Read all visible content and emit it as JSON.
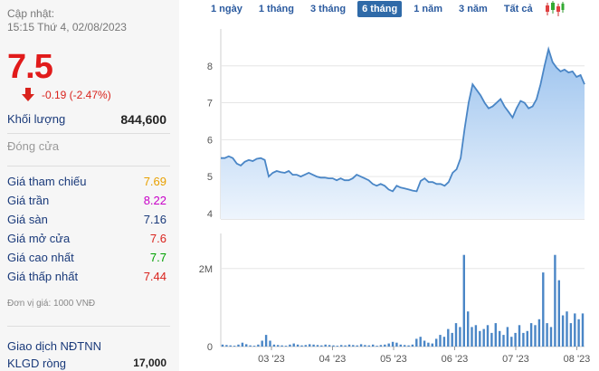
{
  "info": {
    "updated_label": "Cập nhật:",
    "updated_time": "15:15 Thứ 4, 02/08/2023",
    "price": "7.5",
    "change": "-0.19 (-2.47%)",
    "volume_label": "Khối lượng",
    "volume_value": "844,600",
    "close_label": "Đóng cửa"
  },
  "stats": [
    {
      "label": "Giá tham chiếu",
      "value": "7.69",
      "color": "#e8a000"
    },
    {
      "label": "Giá trần",
      "value": "8.22",
      "color": "#c800c8"
    },
    {
      "label": "Giá sàn",
      "value": "7.16",
      "color": "#1a3a7a"
    },
    {
      "label": "Giá mở cửa",
      "value": "7.6",
      "color": "#d9231d"
    },
    {
      "label": "Giá cao nhất",
      "value": "7.7",
      "color": "#00a000"
    },
    {
      "label": "Giá thấp nhất",
      "value": "7.44",
      "color": "#d9231d"
    }
  ],
  "unit_note": "Đơn vị giá: 1000 VNĐ",
  "foreign": {
    "title": "Giao dịch NĐTNN",
    "net_label": "KLGD ròng",
    "net_value": "17,000"
  },
  "tabs": [
    {
      "label": "1 ngày",
      "active": false
    },
    {
      "label": "1 tháng",
      "active": false
    },
    {
      "label": "3 tháng",
      "active": false
    },
    {
      "label": "6 tháng",
      "active": true
    },
    {
      "label": "1 năm",
      "active": false
    },
    {
      "label": "3 năm",
      "active": false
    },
    {
      "label": "Tất cả",
      "active": false
    }
  ],
  "chart_data": {
    "type": "area",
    "x_ticks": [
      "03 '23",
      "04 '23",
      "05 '23",
      "06 '23",
      "07 '23",
      "08 '23"
    ],
    "y_ticks": [
      4,
      5,
      6,
      7,
      8
    ],
    "ylim": [
      3.85,
      9.0
    ],
    "price_series": [
      5.5,
      5.5,
      5.55,
      5.5,
      5.35,
      5.3,
      5.4,
      5.45,
      5.42,
      5.48,
      5.5,
      5.45,
      5.0,
      5.1,
      5.15,
      5.12,
      5.1,
      5.15,
      5.05,
      5.05,
      5.0,
      5.05,
      5.1,
      5.05,
      5.0,
      4.97,
      4.97,
      4.95,
      4.95,
      4.9,
      4.95,
      4.9,
      4.9,
      4.95,
      5.05,
      5.0,
      4.95,
      4.9,
      4.8,
      4.75,
      4.8,
      4.75,
      4.65,
      4.6,
      4.75,
      4.7,
      4.68,
      4.65,
      4.62,
      4.6,
      4.88,
      4.95,
      4.85,
      4.85,
      4.8,
      4.8,
      4.75,
      4.85,
      5.1,
      5.2,
      5.5,
      6.3,
      7.0,
      7.5,
      7.35,
      7.2,
      7.0,
      6.85,
      6.9,
      7.0,
      7.1,
      6.9,
      6.75,
      6.6,
      6.85,
      7.05,
      7.0,
      6.85,
      6.9,
      7.1,
      7.5,
      8.0,
      8.45,
      8.1,
      7.95,
      7.85,
      7.9,
      7.82,
      7.85,
      7.7,
      7.75,
      7.5
    ],
    "volume_series": [
      0.05,
      0.04,
      0.03,
      0.02,
      0.05,
      0.1,
      0.06,
      0.03,
      0.02,
      0.05,
      0.15,
      0.3,
      0.15,
      0.05,
      0.04,
      0.03,
      0.02,
      0.05,
      0.08,
      0.05,
      0.03,
      0.04,
      0.06,
      0.05,
      0.04,
      0.03,
      0.05,
      0.04,
      0.03,
      0.02,
      0.04,
      0.03,
      0.05,
      0.04,
      0.03,
      0.06,
      0.04,
      0.03,
      0.05,
      0.02,
      0.04,
      0.05,
      0.08,
      0.12,
      0.1,
      0.05,
      0.04,
      0.03,
      0.05,
      0.2,
      0.25,
      0.15,
      0.1,
      0.08,
      0.2,
      0.3,
      0.25,
      0.45,
      0.35,
      0.6,
      0.5,
      2.35,
      0.9,
      0.5,
      0.55,
      0.4,
      0.45,
      0.55,
      0.35,
      0.6,
      0.4,
      0.3,
      0.5,
      0.25,
      0.35,
      0.55,
      0.35,
      0.4,
      0.6,
      0.55,
      0.7,
      1.9,
      0.6,
      0.5,
      2.35,
      1.7,
      0.8,
      0.9,
      0.6,
      0.85,
      0.7,
      0.85
    ],
    "volume_ticks": [
      {
        "label": "2M",
        "value": 2.0
      },
      {
        "label": "0",
        "value": 0
      }
    ],
    "volume_max": 2.9,
    "line_color": "#4a86c6",
    "fill_top": "#9cc3ee",
    "fill_bottom": "#eef5fd",
    "volume_color": "#4a86c6"
  }
}
